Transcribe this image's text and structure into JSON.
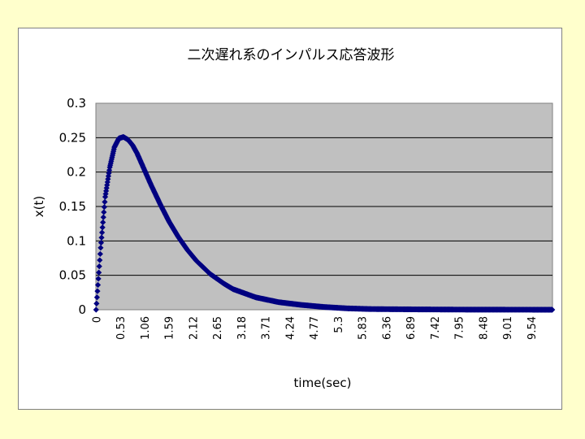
{
  "chart_data": {
    "type": "scatter",
    "title": "二次遅れ系のインパルス応答波形",
    "xlabel": "time(sec)",
    "ylabel": "x(t)",
    "ylim": [
      0,
      0.3
    ],
    "yticks": [
      "0",
      "0.05",
      "0.1",
      "0.15",
      "0.2",
      "0.25",
      "0.3"
    ],
    "xticks": [
      "0",
      "0.53",
      "1.06",
      "1.59",
      "2.12",
      "2.65",
      "3.18",
      "3.71",
      "4.24",
      "4.77",
      "5.3",
      "5.83",
      "6.36",
      "6.89",
      "7.42",
      "7.95",
      "8.48",
      "9.01",
      "9.54"
    ],
    "x_step": 0.01,
    "x_range": [
      0,
      10
    ],
    "plot_background": "#C0C0C0",
    "marker_color": "#000080",
    "grid": true,
    "legend": "none",
    "series": [
      {
        "values": [
          {
            "x": 0,
            "y": 0
          },
          {
            "x": 0.1,
            "y": 0.09
          },
          {
            "x": 0.2,
            "y": 0.164
          },
          {
            "x": 0.3,
            "y": 0.207
          },
          {
            "x": 0.4,
            "y": 0.236
          },
          {
            "x": 0.5,
            "y": 0.249
          },
          {
            "x": 0.6,
            "y": 0.251
          },
          {
            "x": 0.7,
            "y": 0.247
          },
          {
            "x": 0.8,
            "y": 0.239
          },
          {
            "x": 0.9,
            "y": 0.227
          },
          {
            "x": 1.0,
            "y": 0.212
          },
          {
            "x": 1.2,
            "y": 0.182
          },
          {
            "x": 1.4,
            "y": 0.154
          },
          {
            "x": 1.6,
            "y": 0.128
          },
          {
            "x": 1.8,
            "y": 0.106
          },
          {
            "x": 2.0,
            "y": 0.087
          },
          {
            "x": 2.2,
            "y": 0.071
          },
          {
            "x": 2.5,
            "y": 0.052
          },
          {
            "x": 2.8,
            "y": 0.038
          },
          {
            "x": 3.0,
            "y": 0.03
          },
          {
            "x": 3.5,
            "y": 0.018
          },
          {
            "x": 4.0,
            "y": 0.011
          },
          {
            "x": 4.5,
            "y": 0.007
          },
          {
            "x": 5.0,
            "y": 0.004
          },
          {
            "x": 5.5,
            "y": 0.002
          },
          {
            "x": 6.0,
            "y": 0.001
          },
          {
            "x": 7.0,
            "y": 0.0005
          },
          {
            "x": 8.0,
            "y": 0.0002
          },
          {
            "x": 9.0,
            "y": 0.0001
          },
          {
            "x": 10.0,
            "y": 0
          }
        ]
      }
    ]
  }
}
